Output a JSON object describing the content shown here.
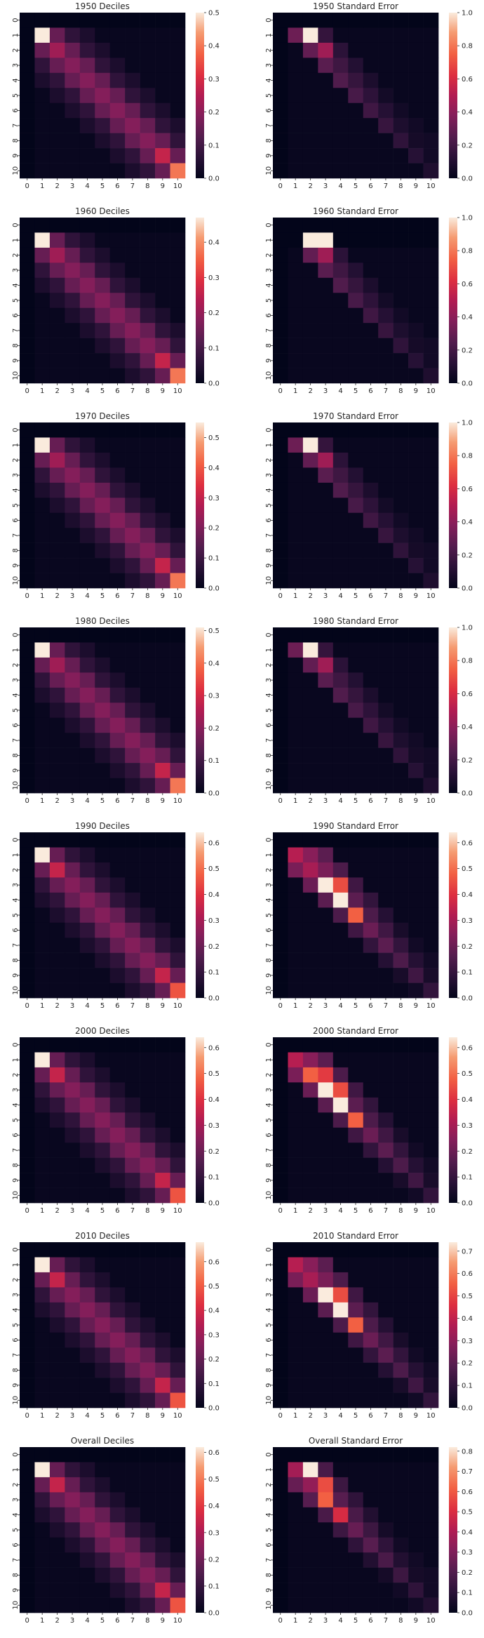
{
  "chart_data": [
    {
      "type": "heatmap",
      "title": "1950 Deciles",
      "categories": [
        "0",
        "1",
        "2",
        "3",
        "4",
        "5",
        "6",
        "7",
        "8",
        "9",
        "10"
      ],
      "colorbar_ticks": [
        0.0,
        0.1,
        0.2,
        0.3,
        0.4,
        0.5
      ],
      "vmax": 0.5,
      "profile": "deciles"
    },
    {
      "type": "heatmap",
      "title": "1950 Standard Error",
      "categories": [
        "0",
        "1",
        "2",
        "3",
        "4",
        "5",
        "6",
        "7",
        "8",
        "9",
        "10"
      ],
      "colorbar_ticks": [
        0.0,
        0.2,
        0.4,
        0.6,
        0.8,
        1.0
      ],
      "vmax": 1.0,
      "profile": "se_early"
    },
    {
      "type": "heatmap",
      "title": "1960 Deciles",
      "categories": [
        "0",
        "1",
        "2",
        "3",
        "4",
        "5",
        "6",
        "7",
        "8",
        "9",
        "10"
      ],
      "colorbar_ticks": [
        0.0,
        0.1,
        0.2,
        0.3,
        0.4
      ],
      "vmax": 0.47,
      "profile": "deciles"
    },
    {
      "type": "heatmap",
      "title": "1960 Standard Error",
      "categories": [
        "0",
        "1",
        "2",
        "3",
        "4",
        "5",
        "6",
        "7",
        "8",
        "9",
        "10"
      ],
      "colorbar_ticks": [
        0.0,
        0.2,
        0.4,
        0.6,
        0.8,
        1.0
      ],
      "vmax": 1.0,
      "profile": "se_early2"
    },
    {
      "type": "heatmap",
      "title": "1970 Deciles",
      "categories": [
        "0",
        "1",
        "2",
        "3",
        "4",
        "5",
        "6",
        "7",
        "8",
        "9",
        "10"
      ],
      "colorbar_ticks": [
        0.0,
        0.1,
        0.2,
        0.3,
        0.4,
        0.5
      ],
      "vmax": 0.55,
      "profile": "deciles"
    },
    {
      "type": "heatmap",
      "title": "1970 Standard Error",
      "categories": [
        "0",
        "1",
        "2",
        "3",
        "4",
        "5",
        "6",
        "7",
        "8",
        "9",
        "10"
      ],
      "colorbar_ticks": [
        0.0,
        0.2,
        0.4,
        0.6,
        0.8,
        1.0
      ],
      "vmax": 1.0,
      "profile": "se_early"
    },
    {
      "type": "heatmap",
      "title": "1980 Deciles",
      "categories": [
        "0",
        "1",
        "2",
        "3",
        "4",
        "5",
        "6",
        "7",
        "8",
        "9",
        "10"
      ],
      "colorbar_ticks": [
        0.0,
        0.1,
        0.2,
        0.3,
        0.4,
        0.5
      ],
      "vmax": 0.51,
      "profile": "deciles"
    },
    {
      "type": "heatmap",
      "title": "1980 Standard Error",
      "categories": [
        "0",
        "1",
        "2",
        "3",
        "4",
        "5",
        "6",
        "7",
        "8",
        "9",
        "10"
      ],
      "colorbar_ticks": [
        0.0,
        0.2,
        0.4,
        0.6,
        0.8,
        1.0
      ],
      "vmax": 1.0,
      "profile": "se_early"
    },
    {
      "type": "heatmap",
      "title": "1990 Deciles",
      "categories": [
        "0",
        "1",
        "2",
        "3",
        "4",
        "5",
        "6",
        "7",
        "8",
        "9",
        "10"
      ],
      "colorbar_ticks": [
        0.0,
        0.1,
        0.2,
        0.3,
        0.4,
        0.5,
        0.6
      ],
      "vmax": 0.64,
      "profile": "deciles_late"
    },
    {
      "type": "heatmap",
      "title": "1990 Standard Error",
      "categories": [
        "0",
        "1",
        "2",
        "3",
        "4",
        "5",
        "6",
        "7",
        "8",
        "9",
        "10"
      ],
      "colorbar_ticks": [
        0.0,
        0.1,
        0.2,
        0.3,
        0.4,
        0.5,
        0.6
      ],
      "vmax": 0.64,
      "profile": "se_late"
    },
    {
      "type": "heatmap",
      "title": "2000 Deciles",
      "categories": [
        "0",
        "1",
        "2",
        "3",
        "4",
        "5",
        "6",
        "7",
        "8",
        "9",
        "10"
      ],
      "colorbar_ticks": [
        0.0,
        0.1,
        0.2,
        0.3,
        0.4,
        0.5,
        0.6
      ],
      "vmax": 0.64,
      "profile": "deciles_late"
    },
    {
      "type": "heatmap",
      "title": "2000 Standard Error",
      "categories": [
        "0",
        "1",
        "2",
        "3",
        "4",
        "5",
        "6",
        "7",
        "8",
        "9",
        "10"
      ],
      "colorbar_ticks": [
        0.0,
        0.1,
        0.2,
        0.3,
        0.4,
        0.5,
        0.6
      ],
      "vmax": 0.64,
      "profile": "se_late2"
    },
    {
      "type": "heatmap",
      "title": "2010 Deciles",
      "categories": [
        "0",
        "1",
        "2",
        "3",
        "4",
        "5",
        "6",
        "7",
        "8",
        "9",
        "10"
      ],
      "colorbar_ticks": [
        0.0,
        0.1,
        0.2,
        0.3,
        0.4,
        0.5,
        0.6
      ],
      "vmax": 0.68,
      "profile": "deciles_late"
    },
    {
      "type": "heatmap",
      "title": "2010 Standard Error",
      "categories": [
        "0",
        "1",
        "2",
        "3",
        "4",
        "5",
        "6",
        "7",
        "8",
        "9",
        "10"
      ],
      "colorbar_ticks": [
        0.0,
        0.1,
        0.2,
        0.3,
        0.4,
        0.5,
        0.6,
        0.7
      ],
      "vmax": 0.74,
      "profile": "se_late3"
    },
    {
      "type": "heatmap",
      "title": "Overall Deciles",
      "categories": [
        "0",
        "1",
        "2",
        "3",
        "4",
        "5",
        "6",
        "7",
        "8",
        "9",
        "10"
      ],
      "colorbar_ticks": [
        0.0,
        0.1,
        0.2,
        0.3,
        0.4,
        0.5,
        0.6
      ],
      "vmax": 0.62,
      "profile": "deciles_late"
    },
    {
      "type": "heatmap",
      "title": "Overall Standard Error",
      "categories": [
        "0",
        "1",
        "2",
        "3",
        "4",
        "5",
        "6",
        "7",
        "8",
        "9",
        "10"
      ],
      "colorbar_ticks": [
        0.0,
        0.1,
        0.2,
        0.3,
        0.4,
        0.5,
        0.6,
        0.7,
        0.8
      ],
      "vmax": 0.82,
      "profile": "se_overall"
    }
  ]
}
